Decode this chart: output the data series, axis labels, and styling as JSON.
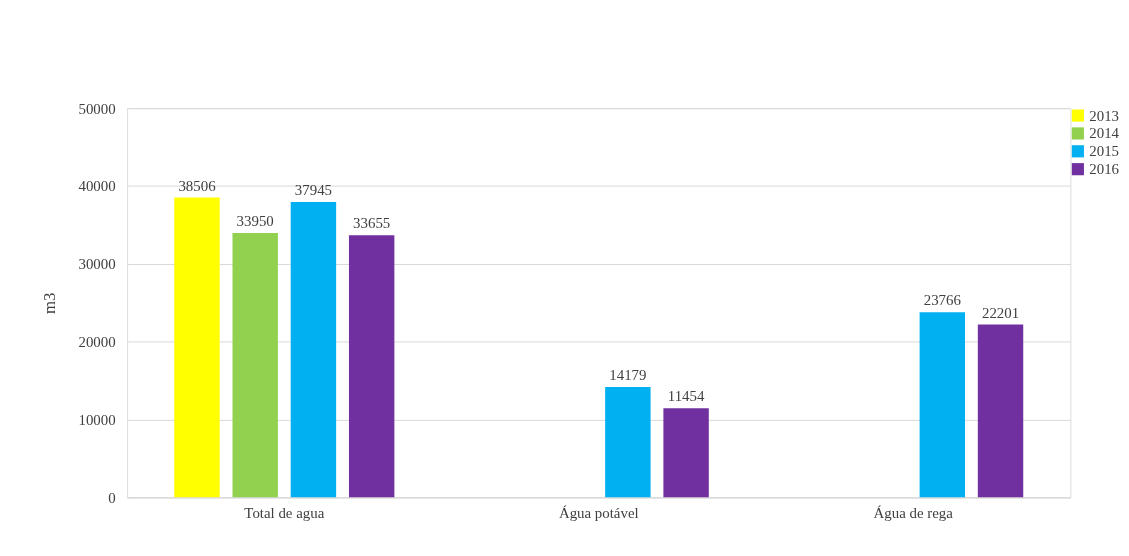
{
  "chart_data": {
    "type": "bar",
    "ylabel": "m3",
    "categories": [
      "Total de agua",
      "Água potável",
      "Água de rega"
    ],
    "series": [
      {
        "name": "2013",
        "color": "#ffff00",
        "values": [
          38506,
          null,
          null
        ]
      },
      {
        "name": "2014",
        "color": "#92d050",
        "values": [
          33950,
          null,
          null
        ]
      },
      {
        "name": "2015",
        "color": "#00b0f0",
        "values": [
          37945,
          14179,
          23766
        ]
      },
      {
        "name": "2016",
        "color": "#7030a0",
        "values": [
          33655,
          11454,
          22201
        ]
      }
    ],
    "ylim": [
      0,
      50000
    ],
    "yticks": [
      0,
      10000,
      20000,
      30000,
      40000,
      50000
    ],
    "grid": "y",
    "legend": "right",
    "data_labels": true
  }
}
